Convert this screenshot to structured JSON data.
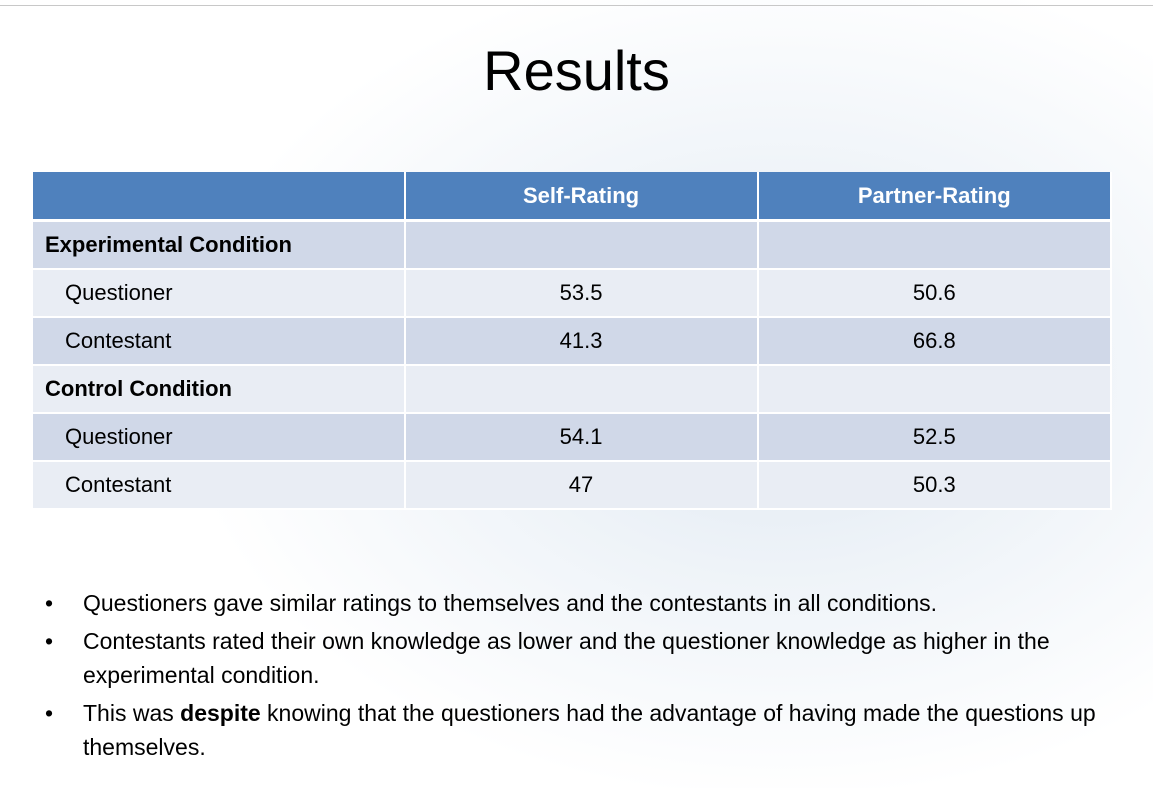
{
  "title": "Results",
  "table": {
    "columns": [
      "Self-Rating",
      "Partner-Rating"
    ],
    "groups": [
      {
        "label": "Experimental Condition",
        "rows": [
          {
            "label": "Questioner",
            "values": [
              53.5,
              50.6
            ]
          },
          {
            "label": "Contestant",
            "values": [
              41.3,
              66.8
            ]
          }
        ]
      },
      {
        "label": "Control Condition",
        "rows": [
          {
            "label": "Questioner",
            "values": [
              54.1,
              52.5
            ]
          },
          {
            "label": "Contestant",
            "values": [
              47,
              50.3
            ]
          }
        ]
      }
    ]
  },
  "bullets": [
    {
      "parts": [
        "Questioners gave similar ratings to themselves and the contestants in all conditions."
      ]
    },
    {
      "parts": [
        "Contestants rated their own knowledge as lower and the questioner knowledge as higher in the experimental condition."
      ]
    },
    {
      "parts": [
        "This was ",
        "despite",
        " knowing that the questioners had the advantage of having made the questions up themselves."
      ],
      "bold": [
        1
      ]
    }
  ]
}
